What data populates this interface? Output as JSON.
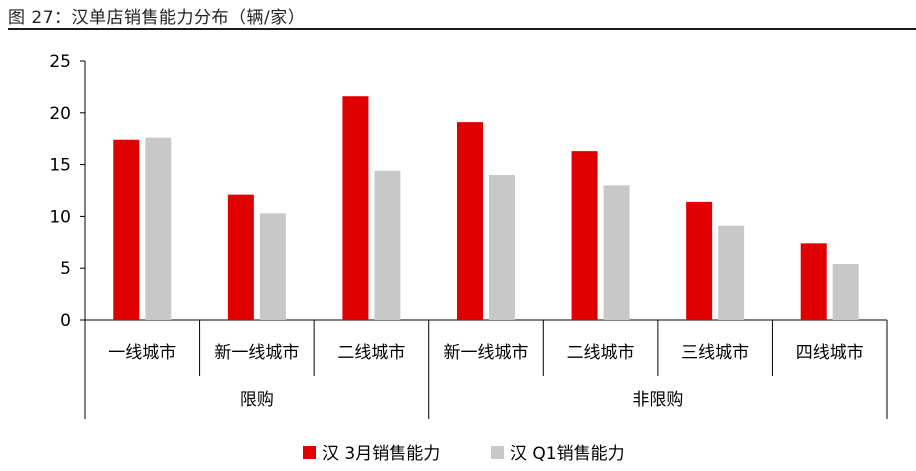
{
  "title": "图  27：汉单店销售能力分布（辆/家）",
  "colors": {
    "s1": "#e00000",
    "s2": "#c8c8c8",
    "axis": "#000000"
  },
  "chart_data": {
    "type": "bar",
    "title": "图  27：汉单店销售能力分布（辆/家）",
    "ylim": [
      0,
      25
    ],
    "yticks": [
      0,
      5,
      10,
      15,
      20,
      25
    ],
    "categories": [
      "一线城市",
      "新一线城市",
      "二线城市",
      "新一线城市",
      "二线城市",
      "三线城市",
      "四线城市"
    ],
    "groups": [
      {
        "label": "限购",
        "count": 3
      },
      {
        "label": "非限购",
        "count": 4
      }
    ],
    "series": [
      {
        "name": "汉 3月销售能力",
        "values": [
          17.4,
          12.1,
          21.6,
          19.1,
          16.3,
          11.4,
          7.4
        ]
      },
      {
        "name": "汉 Q1销售能力",
        "values": [
          17.6,
          10.3,
          14.4,
          14.0,
          13.0,
          9.1,
          5.4
        ]
      }
    ],
    "legend_position": "bottom",
    "grid": false
  }
}
